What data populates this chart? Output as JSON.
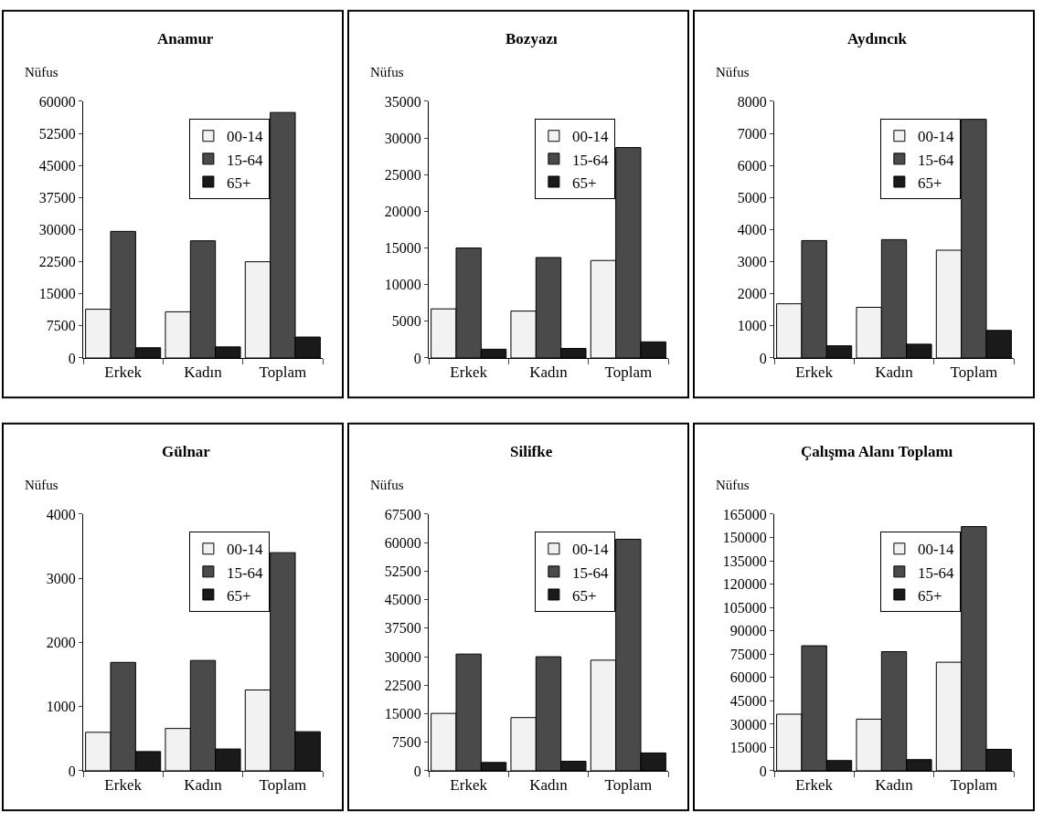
{
  "chart_data": [
    {
      "type": "bar",
      "title": "Anamur",
      "ylabel": "Nüfus",
      "categories": [
        "Erkek",
        "Kadın",
        "Toplam"
      ],
      "ylim": [
        0,
        60000
      ],
      "yticks": [
        0,
        7500,
        15000,
        22500,
        30000,
        37500,
        45000,
        52500,
        60000
      ],
      "legend": "top",
      "series": [
        {
          "name": "00-14",
          "color": "#f2f2f2",
          "values": [
            11400,
            10800,
            22500
          ]
        },
        {
          "name": "15-64",
          "color": "#4a4a4a",
          "values": [
            29600,
            27400,
            57400
          ]
        },
        {
          "name": "65+",
          "color": "#1a1a1a",
          "values": [
            2400,
            2600,
            4900
          ]
        }
      ]
    },
    {
      "type": "bar",
      "title": "Bozyazı",
      "ylabel": "Nüfus",
      "categories": [
        "Erkek",
        "Kadın",
        "Toplam"
      ],
      "ylim": [
        0,
        35000
      ],
      "yticks": [
        0,
        5000,
        10000,
        15000,
        20000,
        25000,
        30000,
        35000
      ],
      "legend": "top",
      "series": [
        {
          "name": "00-14",
          "color": "#f2f2f2",
          "values": [
            6700,
            6400,
            13300
          ]
        },
        {
          "name": "15-64",
          "color": "#4a4a4a",
          "values": [
            15000,
            13700,
            28700
          ]
        },
        {
          "name": "65+",
          "color": "#1a1a1a",
          "values": [
            1200,
            1300,
            2200
          ]
        }
      ]
    },
    {
      "type": "bar",
      "title": "Aydıncık",
      "ylabel": "Nüfus",
      "categories": [
        "Erkek",
        "Kadın",
        "Toplam"
      ],
      "ylim": [
        0,
        8000
      ],
      "yticks": [
        0,
        1000,
        2000,
        3000,
        4000,
        5000,
        6000,
        7000,
        8000
      ],
      "legend": "top",
      "series": [
        {
          "name": "00-14",
          "color": "#f2f2f2",
          "values": [
            1690,
            1580,
            3360
          ]
        },
        {
          "name": "15-64",
          "color": "#4a4a4a",
          "values": [
            3660,
            3690,
            7440
          ]
        },
        {
          "name": "65+",
          "color": "#1a1a1a",
          "values": [
            380,
            430,
            860
          ]
        }
      ]
    },
    {
      "type": "bar",
      "title": "Gülnar",
      "ylabel": "Nüfus",
      "categories": [
        "Erkek",
        "Kadın",
        "Toplam"
      ],
      "ylim": [
        0,
        4000
      ],
      "yticks": [
        0,
        1000,
        2000,
        3000,
        4000
      ],
      "legend": "top",
      "series": [
        {
          "name": "00-14",
          "color": "#f2f2f2",
          "values": [
            600,
            660,
            1260
          ]
        },
        {
          "name": "15-64",
          "color": "#4a4a4a",
          "values": [
            1690,
            1720,
            3400
          ]
        },
        {
          "name": "65+",
          "color": "#1a1a1a",
          "values": [
            300,
            340,
            610
          ]
        }
      ]
    },
    {
      "type": "bar",
      "title": "Silifke",
      "ylabel": "Nüfus",
      "categories": [
        "Erkek",
        "Kadın",
        "Toplam"
      ],
      "ylim": [
        0,
        67500
      ],
      "yticks": [
        0,
        7500,
        15000,
        22500,
        30000,
        37500,
        45000,
        52500,
        60000,
        67500
      ],
      "legend": "top",
      "series": [
        {
          "name": "00-14",
          "color": "#f2f2f2",
          "values": [
            15100,
            14000,
            29100
          ]
        },
        {
          "name": "15-64",
          "color": "#4a4a4a",
          "values": [
            30700,
            30000,
            60900
          ]
        },
        {
          "name": "65+",
          "color": "#1a1a1a",
          "values": [
            2200,
            2500,
            4700
          ]
        }
      ]
    },
    {
      "type": "bar",
      "title": "Çalışma Alanı Toplamı",
      "ylabel": "Nüfus",
      "categories": [
        "Erkek",
        "Kadın",
        "Toplam"
      ],
      "ylim": [
        0,
        165000
      ],
      "yticks": [
        0,
        15000,
        30000,
        45000,
        60000,
        75000,
        90000,
        105000,
        120000,
        135000,
        150000,
        165000
      ],
      "legend": "top",
      "series": [
        {
          "name": "00-14",
          "color": "#f2f2f2",
          "values": [
            36400,
            33200,
            69800
          ]
        },
        {
          "name": "15-64",
          "color": "#4a4a4a",
          "values": [
            80400,
            76600,
            157000
          ]
        },
        {
          "name": "65+",
          "color": "#1a1a1a",
          "values": [
            6600,
            7200,
            13800
          ]
        }
      ]
    }
  ]
}
